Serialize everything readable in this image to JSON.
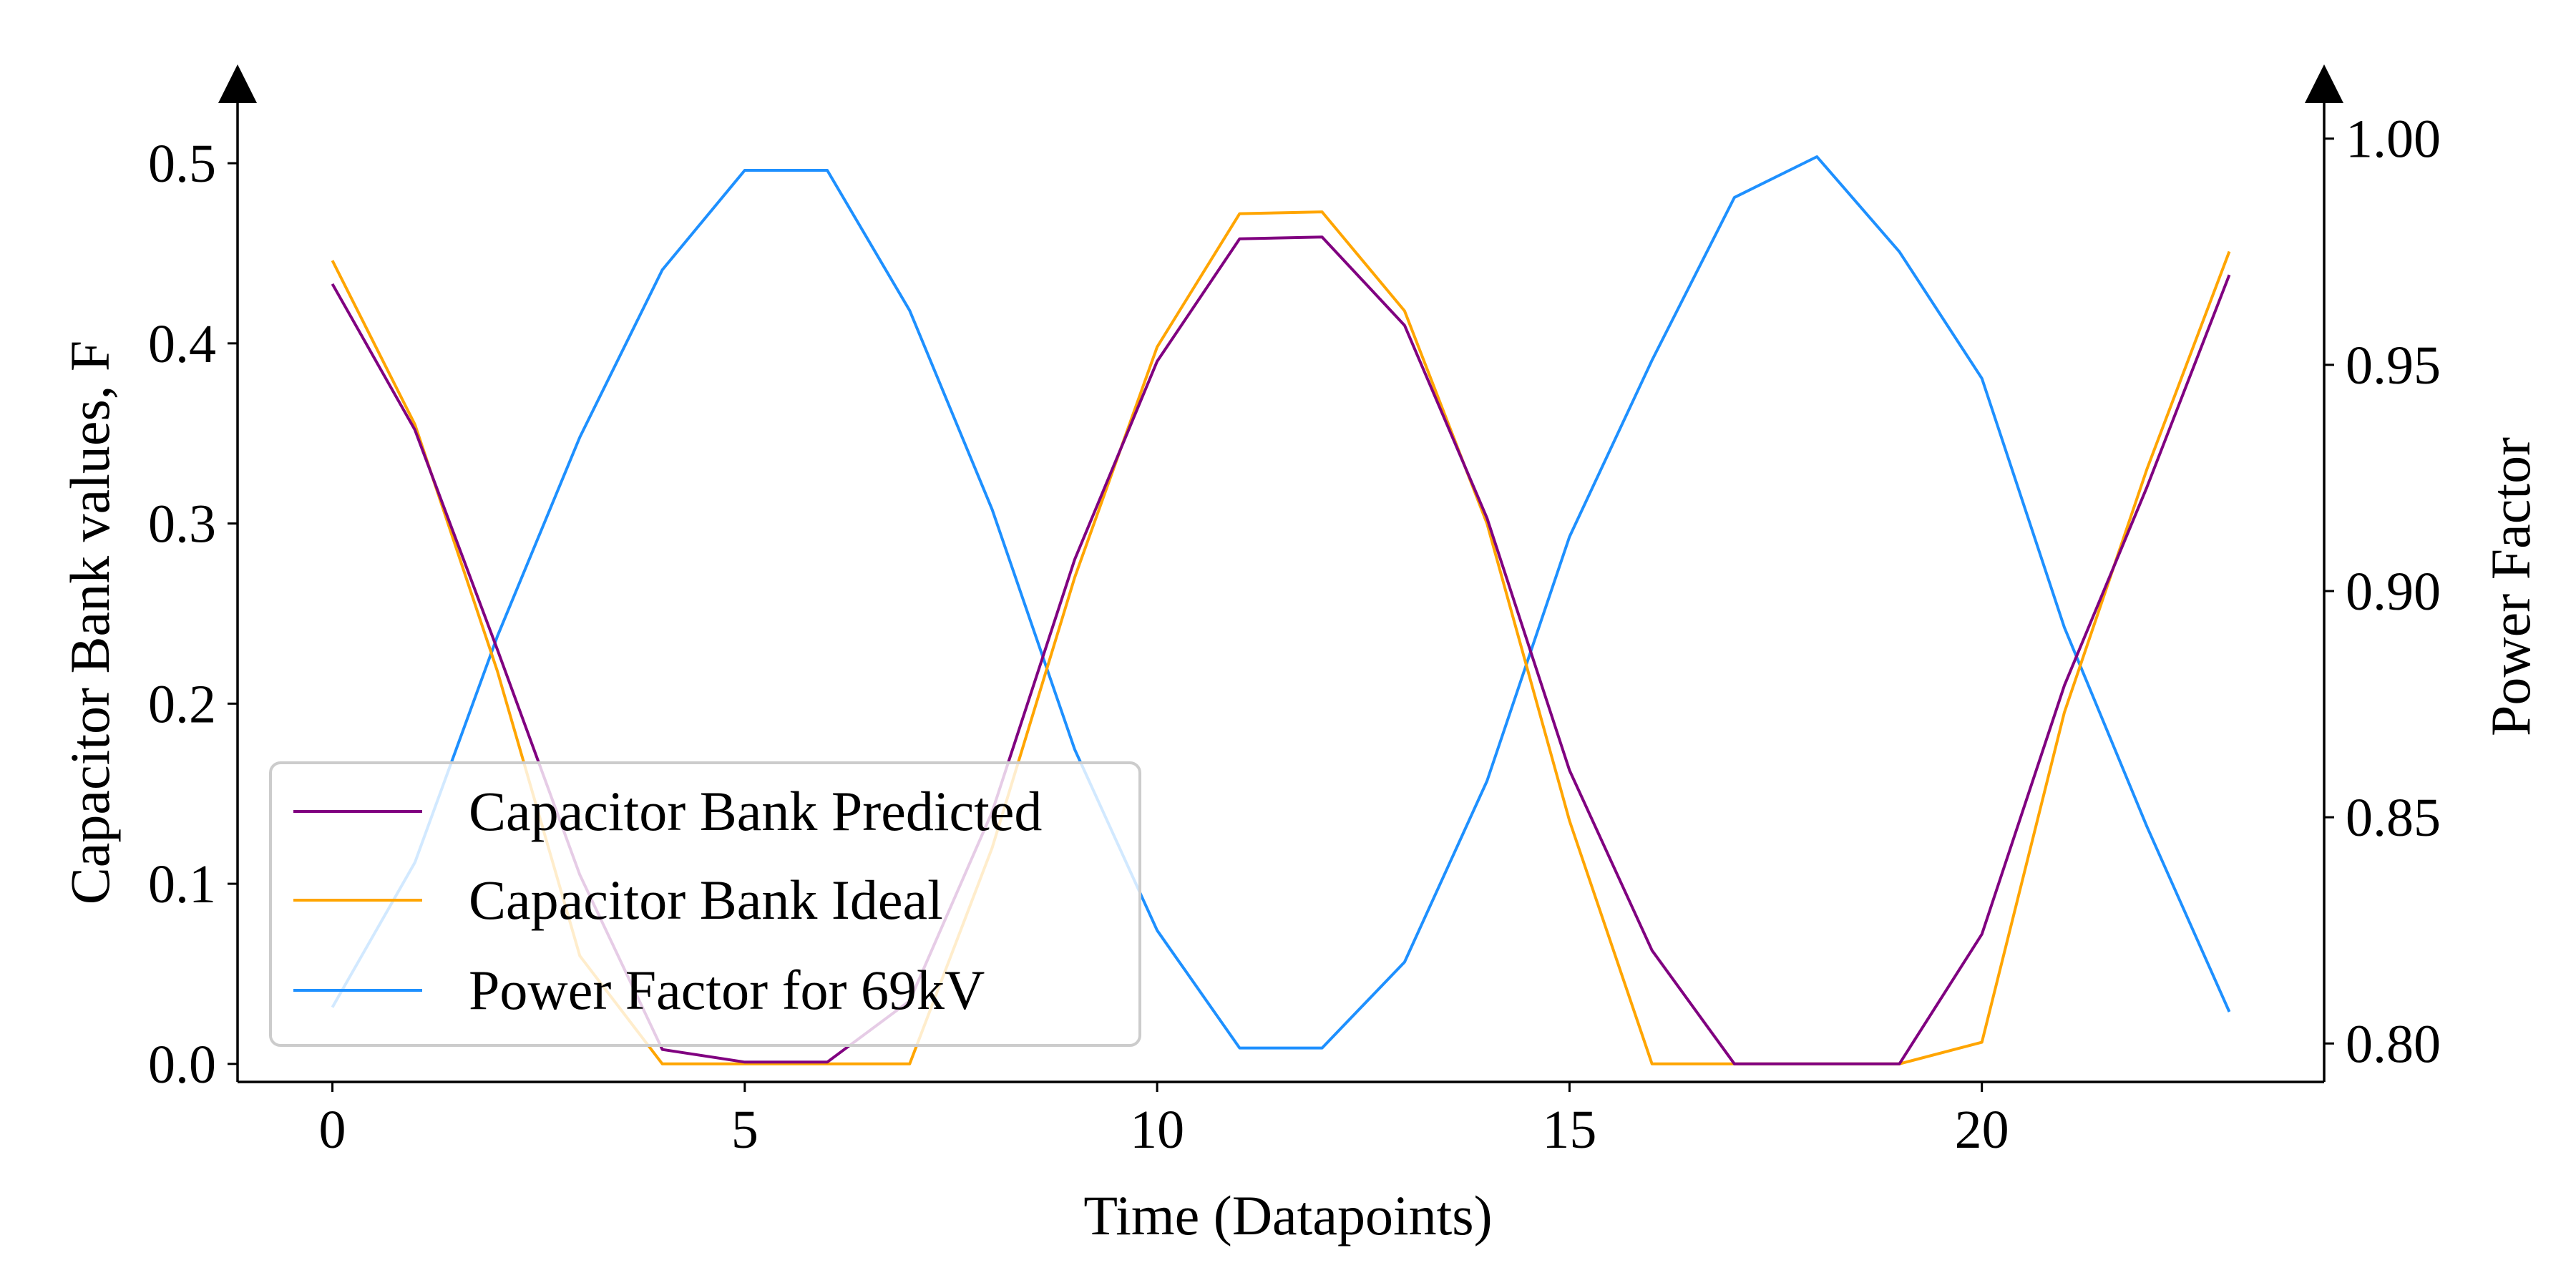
{
  "chart_data": {
    "type": "line",
    "xlabel": "Time (Datapoints)",
    "ylabel": "Capacitor Bank values, F",
    "y2label": "Power Factor",
    "x": [
      0,
      1,
      2,
      3,
      4,
      5,
      6,
      7,
      8,
      9,
      10,
      11,
      12,
      13,
      14,
      15,
      16,
      17,
      18,
      19,
      20,
      21,
      22,
      23
    ],
    "xlim": [
      -1.15,
      24.15
    ],
    "xticks": [
      "0",
      "5",
      "10",
      "15",
      "20"
    ],
    "ylim": [
      -0.01,
      0.535
    ],
    "yticks": [
      "0.0",
      "0.1",
      "0.2",
      "0.3",
      "0.4",
      "0.5"
    ],
    "y2lim": [
      0.7915,
      1.0085
    ],
    "y2ticks": [
      "0.80",
      "0.85",
      "0.90",
      "0.95",
      "1.00"
    ],
    "grid": false,
    "legend_position": "lower-left",
    "series": [
      {
        "name": "Capacitor Bank Predicted",
        "axis": "left",
        "color": "#800080",
        "values": [
          0.433,
          0.352,
          0.23,
          0.105,
          0.008,
          0.001,
          0.001,
          0.035,
          0.14,
          0.28,
          0.39,
          0.458,
          0.459,
          0.41,
          0.303,
          0.163,
          0.063,
          0.0,
          0.0,
          0.0,
          0.072,
          0.21,
          0.32,
          0.438
        ]
      },
      {
        "name": "Capacitor Bank Ideal",
        "axis": "left",
        "color": "#FFA500",
        "values": [
          0.446,
          0.355,
          0.218,
          0.06,
          0.0,
          0.0,
          0.0,
          0.0,
          0.12,
          0.27,
          0.398,
          0.472,
          0.473,
          0.418,
          0.3,
          0.135,
          0.0,
          0.0,
          0.0,
          0.0,
          0.012,
          0.195,
          0.33,
          0.451
        ]
      },
      {
        "name": "Power Factor for 69kV",
        "axis": "right",
        "color": "#1E90FF",
        "values": [
          0.808,
          0.84,
          0.89,
          0.934,
          0.971,
          0.993,
          0.993,
          0.962,
          0.918,
          0.865,
          0.825,
          0.799,
          0.799,
          0.818,
          0.858,
          0.912,
          0.951,
          0.987,
          0.996,
          0.975,
          0.947,
          0.892,
          0.848,
          0.807
        ]
      }
    ]
  }
}
